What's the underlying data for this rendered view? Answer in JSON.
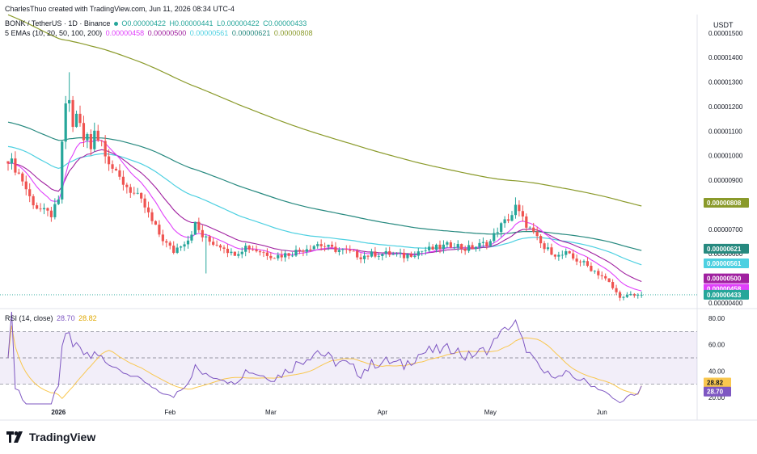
{
  "header": {
    "creator": "CharlesThuo created with TradingView.com, Jun 11, 2026 08:34 UTC-4",
    "symbol_line": "BONK / TetherUS · 1D · Binance",
    "ohlc": {
      "o": "O0.00000422",
      "h": "H0.00000441",
      "l": "L0.00000422",
      "c": "C0.00000433"
    },
    "ema_label": "5 EMAs (10, 20, 50, 100, 200)",
    "ema_values": [
      "0.00000458",
      "0.00000500",
      "0.00000561",
      "0.00000621",
      "0.00000808"
    ],
    "currency": "USDT"
  },
  "rsi_header": {
    "label": "RSI (14, close)",
    "rsi": "28.70",
    "ma": "28.82"
  },
  "brand": {
    "name": "TradingView"
  },
  "colors": {
    "up": "#26a69a",
    "down": "#ef5350",
    "ema10": "#e040fb",
    "ema20": "#a020a0",
    "ema50": "#4dd0e1",
    "ema100": "#26897f",
    "ema200": "#8a9a2a",
    "rsi": "#7e57c2",
    "rsi_ma": "#f9c74f"
  },
  "chart_data": [
    {
      "type": "candlestick",
      "title": "BONK / TetherUS · 1D · Binance",
      "ylabel": "USDT",
      "ylim": [
        3.9e-06,
        1.575e-05
      ],
      "y_ticks": [
        "0.00001500",
        "0.00001400",
        "0.00001300",
        "0.00001200",
        "0.00001100",
        "0.00001000",
        "0.00000900",
        "0.00000800",
        "0.00000700",
        "0.00000600",
        "0.00000500",
        "0.00000400"
      ],
      "x_labels": [
        {
          "label": "2026",
          "day": 14
        },
        {
          "label": "Feb",
          "day": 45
        },
        {
          "label": "Mar",
          "day": 73
        },
        {
          "label": "Apr",
          "day": 104
        },
        {
          "label": "May",
          "day": 134
        },
        {
          "label": "Jun",
          "day": 165
        }
      ],
      "price_badges": [
        {
          "value": "0.00000808",
          "color": "#8a9a2a"
        },
        {
          "value": "0.00000621",
          "color": "#26897f"
        },
        {
          "value": "0.00000561",
          "color": "#4dd0e1"
        },
        {
          "value": "0.00000500",
          "color": "#a020a0"
        },
        {
          "value": "0.00000458",
          "color": "#e040fb"
        },
        {
          "value": "0.00000433",
          "color": "#26a69a"
        }
      ],
      "close_anchors": [
        [
          0,
          9.9e-06
        ],
        [
          2,
          9.5e-06
        ],
        [
          4,
          9e-06
        ],
        [
          6,
          8.3e-06
        ],
        [
          8,
          7.9e-06
        ],
        [
          10,
          7.7e-06
        ],
        [
          12,
          7.6e-06
        ],
        [
          14,
          8.1e-06
        ],
        [
          15,
          1.06e-05
        ],
        [
          16,
          1.19e-05
        ],
        [
          17,
          1.23e-05
        ],
        [
          18,
          1.11e-05
        ],
        [
          19,
          1.18e-05
        ],
        [
          20,
          1.12e-05
        ],
        [
          21,
          1.06e-05
        ],
        [
          22,
          1.08e-05
        ],
        [
          23,
          1.03e-05
        ],
        [
          24,
          1.12e-05
        ],
        [
          25,
          1.07e-05
        ],
        [
          26,
          1.06e-05
        ],
        [
          27,
          1.02e-05
        ],
        [
          28,
          9.8e-06
        ],
        [
          30,
          9.2e-06
        ],
        [
          32,
          8.9e-06
        ],
        [
          34,
          8.6e-06
        ],
        [
          36,
          8.3e-06
        ],
        [
          38,
          7.9e-06
        ],
        [
          40,
          7.3e-06
        ],
        [
          42,
          6.8e-06
        ],
        [
          44,
          6.4e-06
        ],
        [
          46,
          6.1e-06
        ],
        [
          48,
          6.4e-06
        ],
        [
          50,
          6.6e-06
        ],
        [
          52,
          7.2e-06
        ],
        [
          54,
          6.7e-06
        ],
        [
          56,
          6.5e-06
        ],
        [
          58,
          6.4e-06
        ],
        [
          60,
          6.3e-06
        ],
        [
          62,
          6e-06
        ],
        [
          64,
          6.1e-06
        ],
        [
          66,
          6.3e-06
        ],
        [
          70,
          6.1e-06
        ],
        [
          74,
          5.9e-06
        ],
        [
          78,
          6e-06
        ],
        [
          82,
          6.2e-06
        ],
        [
          86,
          6.4e-06
        ],
        [
          90,
          6.2e-06
        ],
        [
          94,
          6.1e-06
        ],
        [
          98,
          5.9e-06
        ],
        [
          102,
          6e-06
        ],
        [
          106,
          6e-06
        ],
        [
          110,
          5.9e-06
        ],
        [
          114,
          6.1e-06
        ],
        [
          118,
          6.2e-06
        ],
        [
          121,
          6.3e-06
        ],
        [
          124,
          6.4e-06
        ],
        [
          127,
          6.2e-06
        ],
        [
          130,
          6.3e-06
        ],
        [
          134,
          6.5e-06
        ],
        [
          136,
          7e-06
        ],
        [
          138,
          7.3e-06
        ],
        [
          140,
          7.6e-06
        ],
        [
          141,
          7.9e-06
        ],
        [
          143,
          7.4e-06
        ],
        [
          145,
          7e-06
        ],
        [
          147,
          6.6e-06
        ],
        [
          149,
          6.2e-06
        ],
        [
          151,
          6.1e-06
        ],
        [
          153,
          5.9e-06
        ],
        [
          155,
          6e-06
        ],
        [
          157,
          5.8e-06
        ],
        [
          159,
          5.7e-06
        ],
        [
          161,
          5.5e-06
        ],
        [
          163,
          5.3e-06
        ],
        [
          165,
          5.1e-06
        ],
        [
          167,
          4.8e-06
        ],
        [
          169,
          4.4e-06
        ],
        [
          171,
          4.2e-06
        ],
        [
          173,
          4.3e-06
        ],
        [
          175,
          4.3e-06
        ],
        [
          176,
          4.33e-06
        ]
      ],
      "series": [
        {
          "name": "EMA 10",
          "last": "0.00000458"
        },
        {
          "name": "EMA 20",
          "last": "0.00000500"
        },
        {
          "name": "EMA 50",
          "last": "0.00000561"
        },
        {
          "name": "EMA 100",
          "last": "0.00000621"
        },
        {
          "name": "EMA 200",
          "last": "0.00000808"
        }
      ],
      "ema200_start": 1.58e-05,
      "ema100_start": 1.14e-05,
      "ema50_start": 1.04e-05
    },
    {
      "type": "line",
      "title": "RSI (14, close)",
      "ylim": [
        15,
        85
      ],
      "y_ticks": [
        "80.00",
        "60.00",
        "40.00",
        "20.00"
      ],
      "bands": {
        "upper": 70,
        "middle": 50,
        "lower": 30
      },
      "badges": [
        {
          "value": "28.82",
          "color": "#f9c74f"
        },
        {
          "value": "28.70",
          "color": "#7e57c2"
        }
      ]
    }
  ]
}
